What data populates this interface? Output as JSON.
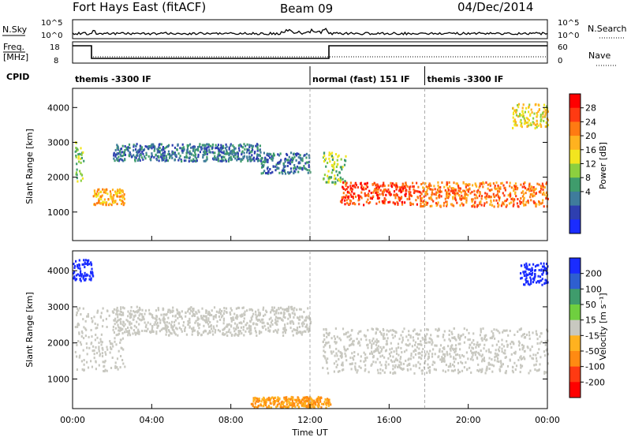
{
  "header": {
    "title": "Fort Hays East (fitACF)",
    "beam": "Beam 09",
    "date": "04/Dec/2014"
  },
  "top_panel": {
    "nsky_label": "N.Sky",
    "nsearch_label": "N.Search",
    "freq_label": "Freq.",
    "freq_unit": "[MHz]",
    "nave_label": "Nave",
    "cpid_label": "CPID",
    "left_ticks_noise": [
      "10^5",
      "10^0"
    ],
    "right_ticks_noise": [
      "10^5",
      "10^0"
    ],
    "left_ticks_freq": [
      "18",
      "8"
    ],
    "right_ticks_nave": [
      "60",
      "0"
    ],
    "cpid_segments": [
      {
        "start_h": 0.0,
        "end_h": 12.0,
        "label": "themis -3300 IF"
      },
      {
        "start_h": 12.0,
        "end_h": 17.8,
        "label": "normal (fast) 151 IF"
      },
      {
        "start_h": 17.8,
        "end_h": 24.0,
        "label": "themis -3300 IF"
      }
    ]
  },
  "x_axis": {
    "label": "Time UT",
    "ticks": [
      "00:00",
      "04:00",
      "08:00",
      "12:00",
      "16:00",
      "20:00",
      "00:00"
    ]
  },
  "chart_data": [
    {
      "type": "heatmap",
      "panel": "power",
      "ylabel": "Slant Range [km]",
      "xlim_hours": [
        0,
        24
      ],
      "ylim": [
        180,
        4550
      ],
      "yticks": [
        1000,
        2000,
        3000,
        4000
      ],
      "colorbar": {
        "label": "Power [dB]",
        "ticks": [
          "4",
          "8",
          "12",
          "16",
          "20",
          "24",
          "28"
        ],
        "colors": [
          "#1a2cff",
          "#2e3fb0",
          "#3f7c9c",
          "#3f9c6c",
          "#8ccf3f",
          "#f2e51f",
          "#ffb21f",
          "#ff7a12",
          "#ff3a12",
          "#ff0000"
        ]
      },
      "echo_bands": [
        {
          "start_h": 0.1,
          "end_h": 0.6,
          "lo_km": 1800,
          "hi_km": 3000,
          "level": 4
        },
        {
          "start_h": 1.0,
          "end_h": 2.6,
          "lo_km": 1200,
          "hi_km": 1650,
          "level": 6
        },
        {
          "start_h": 2.0,
          "end_h": 9.5,
          "lo_km": 2450,
          "hi_km": 2950,
          "level": 2
        },
        {
          "start_h": 9.5,
          "end_h": 12.0,
          "lo_km": 2100,
          "hi_km": 2700,
          "level": 2
        },
        {
          "start_h": 12.6,
          "end_h": 13.8,
          "lo_km": 1800,
          "hi_km": 2700,
          "level": 4
        },
        {
          "start_h": 13.5,
          "end_h": 17.5,
          "lo_km": 1200,
          "hi_km": 1850,
          "level": 8
        },
        {
          "start_h": 17.5,
          "end_h": 24.0,
          "lo_km": 1150,
          "hi_km": 1850,
          "level": 7
        },
        {
          "start_h": 22.2,
          "end_h": 24.0,
          "lo_km": 3400,
          "hi_km": 4100,
          "level": 5
        }
      ]
    },
    {
      "type": "heatmap",
      "panel": "velocity",
      "ylabel": "Slant Range [km]",
      "xlim_hours": [
        0,
        24
      ],
      "ylim": [
        180,
        4550
      ],
      "yticks": [
        1000,
        2000,
        3000,
        4000
      ],
      "colorbar": {
        "label": "Velocity [m s⁻¹]",
        "ticks": [
          "200",
          "100",
          "50",
          "15",
          "-15",
          "-50",
          "-100",
          "-200"
        ],
        "colors": [
          "#1a2cff",
          "#2e5fd0",
          "#3f9c6c",
          "#6fcf3f",
          "#c8c8c0",
          "#ffb21f",
          "#ff8a12",
          "#ff3a12",
          "#ff0000"
        ]
      },
      "echo_bands": [
        {
          "start_h": 0.1,
          "end_h": 2.6,
          "lo_km": 1200,
          "hi_km": 3000,
          "vel": 0
        },
        {
          "start_h": 2.0,
          "end_h": 12.0,
          "lo_km": 2200,
          "hi_km": 3000,
          "vel": 0
        },
        {
          "start_h": 12.6,
          "end_h": 24.0,
          "lo_km": 1150,
          "hi_km": 2400,
          "vel": 0
        },
        {
          "start_h": 0.0,
          "end_h": 1.0,
          "lo_km": 3700,
          "hi_km": 4300,
          "vel": 200
        },
        {
          "start_h": 22.6,
          "end_h": 24.0,
          "lo_km": 3600,
          "hi_km": 4200,
          "vel": 200
        },
        {
          "start_h": 9.0,
          "end_h": 13.0,
          "lo_km": 200,
          "hi_km": 500,
          "vel": -50
        }
      ]
    }
  ]
}
